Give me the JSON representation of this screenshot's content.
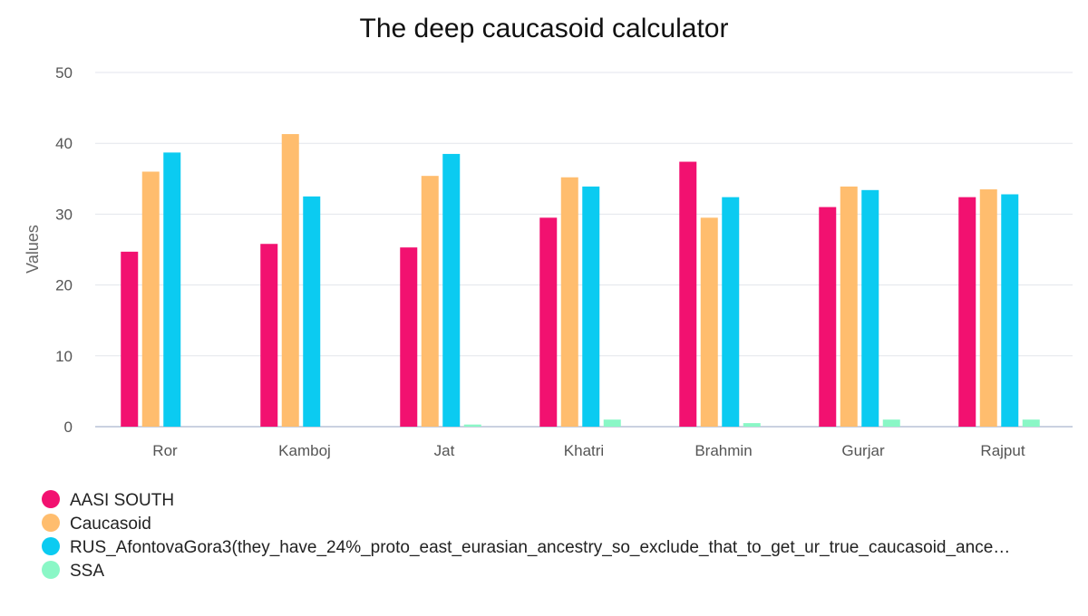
{
  "chart_data": {
    "type": "bar",
    "title": "The deep caucasoid calculator",
    "xlabel": "",
    "ylabel": "Values",
    "ylim": [
      0,
      50
    ],
    "yticks": [
      0,
      10,
      20,
      30,
      40,
      50
    ],
    "grid": true,
    "legend_position": "bottom-left",
    "categories": [
      "Ror",
      "Kamboj",
      "Jat",
      "Khatri",
      "Brahmin",
      "Gurjar",
      "Rajput"
    ],
    "series": [
      {
        "name": "AASI SOUTH",
        "color": "#f21170",
        "values": [
          24.7,
          25.8,
          25.3,
          29.5,
          37.4,
          31.0,
          32.4
        ]
      },
      {
        "name": "Caucasoid",
        "color": "#ffbd6e",
        "values": [
          36.0,
          41.3,
          35.4,
          35.2,
          29.5,
          33.9,
          33.5
        ]
      },
      {
        "name": "RUS_AfontovaGora3(they_have_24%_proto_east_eurasian_ancestry_so_exclude_that_to_get_ur_true_caucasoid_ance…",
        "color": "#0bcbf1",
        "values": [
          38.7,
          32.5,
          38.5,
          33.9,
          32.4,
          33.4,
          32.8
        ]
      },
      {
        "name": "SSA",
        "color": "#8af7c6",
        "values": [
          0.0,
          0.0,
          0.3,
          1.0,
          0.5,
          1.0,
          1.0
        ]
      }
    ]
  }
}
